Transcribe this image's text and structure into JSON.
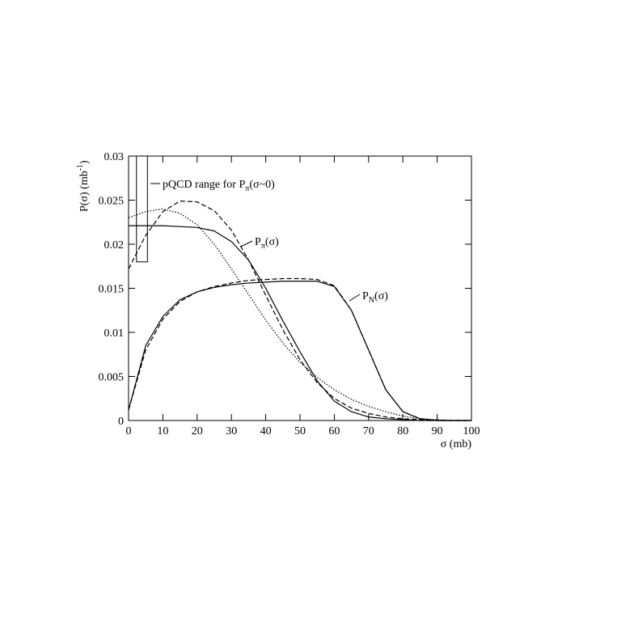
{
  "chart_data": {
    "type": "line",
    "xlabel": "σ (mb)",
    "ylabel": {
      "text": "P(σ) (mb",
      "sup": "-1",
      "after": ")"
    },
    "x": [
      0,
      5,
      10,
      15,
      20,
      25,
      30,
      35,
      40,
      45,
      50,
      55,
      60,
      65,
      70,
      75,
      80,
      85,
      90,
      95,
      100
    ],
    "series": [
      {
        "color": "#000000",
        "dash": "solid",
        "values": [
          0.0221,
          0.0221,
          0.0221,
          0.022,
          0.0219,
          0.0215,
          0.0203,
          0.0182,
          0.015,
          0.0113,
          0.0078,
          0.0045,
          0.0022,
          0.001,
          0.0004,
          0.0002,
          0.0001,
          0,
          0,
          0,
          0
        ]
      },
      {
        "color": "#000000",
        "dash": "dashed",
        "values": [
          0.0172,
          0.021,
          0.0237,
          0.0249,
          0.0248,
          0.0238,
          0.0216,
          0.0182,
          0.0142,
          0.0103,
          0.0069,
          0.0043,
          0.0025,
          0.0014,
          0.0008,
          0.0004,
          0.0002,
          0.0001,
          0,
          0,
          0
        ]
      },
      {
        "color": "#000000",
        "dash": "dotted",
        "values": [
          0.023,
          0.0237,
          0.024,
          0.0235,
          0.0222,
          0.02,
          0.0172,
          0.0143,
          0.0114,
          0.0088,
          0.0066,
          0.0049,
          0.0035,
          0.0024,
          0.0016,
          0.001,
          0.0005,
          0.0002,
          0.0001,
          0,
          0
        ]
      },
      {
        "color": "#000000",
        "dash": "solid",
        "values": [
          0.0012,
          0.0085,
          0.0118,
          0.0137,
          0.0146,
          0.0151,
          0.0154,
          0.0156,
          0.0157,
          0.0158,
          0.0158,
          0.0158,
          0.0152,
          0.0125,
          0.008,
          0.0035,
          0.001,
          0.0002,
          0,
          0,
          0
        ]
      },
      {
        "color": "#000000",
        "dash": "dashed",
        "values": [
          0.0012,
          0.008,
          0.0115,
          0.0135,
          0.0146,
          0.0152,
          0.0156,
          0.0159,
          0.016,
          0.0161,
          0.0161,
          0.016,
          0.0153,
          0.0125,
          0.008,
          0.0035,
          0.001,
          0.0002,
          0,
          0,
          0
        ]
      }
    ],
    "pqcd_range": {
      "x": [
        2.3,
        5.5
      ],
      "y": [
        0.018,
        0.03
      ]
    },
    "annotations": [
      {
        "text": "pQCD range for P",
        "sub": "π",
        "after": "(σ~0)"
      },
      {
        "text": "P",
        "sub": "π",
        "after": "(σ)"
      },
      {
        "text": "P",
        "sub": "N",
        "after": "(σ)"
      }
    ],
    "xlim": [
      0,
      100
    ],
    "xticks": [
      0,
      10,
      20,
      30,
      40,
      50,
      60,
      70,
      80,
      90,
      100
    ],
    "ylim": [
      0,
      0.03
    ],
    "yticks": [
      0,
      0.005,
      0.01,
      0.015,
      0.02,
      0.025,
      0.03
    ],
    "grid": false
  }
}
